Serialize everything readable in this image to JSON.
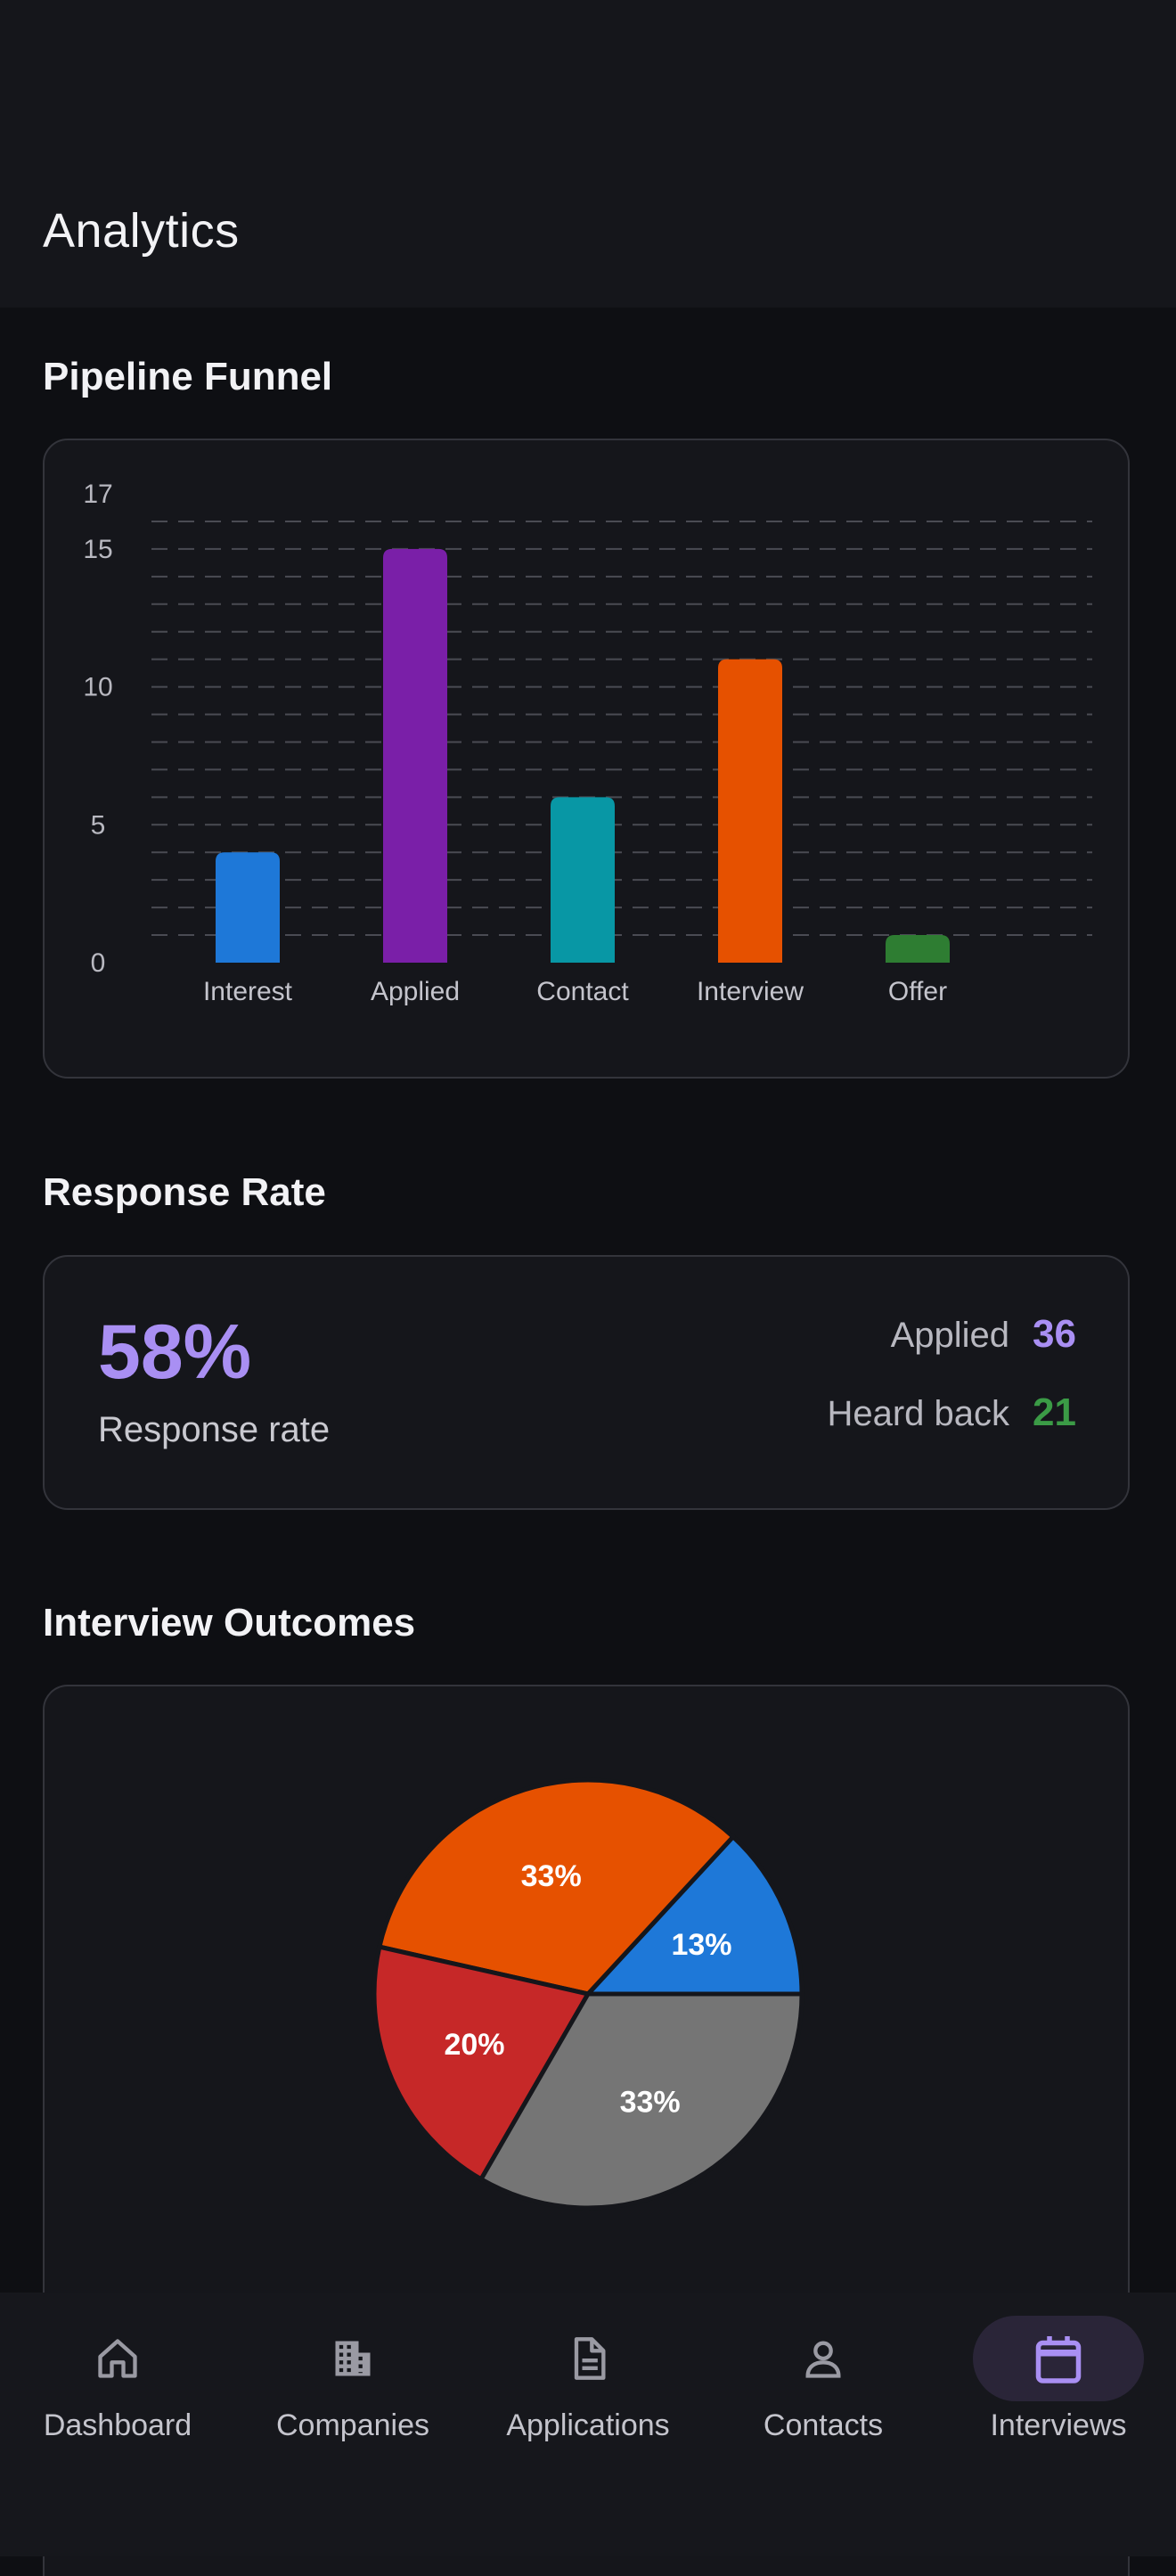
{
  "page": {
    "title": "Analytics"
  },
  "sections": {
    "funnel_title": "Pipeline Funnel",
    "response_title": "Response Rate",
    "outcomes_title": "Interview Outcomes"
  },
  "response": {
    "rate": "58%",
    "rate_label": "Response rate",
    "applied_label": "Applied",
    "applied_value": "36",
    "heard_label": "Heard back",
    "heard_value": "21",
    "applied_color": "#a98ff3",
    "heard_color": "#3b9b46"
  },
  "chart_data": [
    {
      "type": "bar",
      "title": "Pipeline Funnel",
      "categories": [
        "Interest",
        "Applied",
        "Contact",
        "Interview",
        "Offer"
      ],
      "values": [
        4,
        15,
        6,
        11,
        1
      ],
      "colors": [
        "#1e78d8",
        "#7a1fa8",
        "#0897a5",
        "#e65100",
        "#2e7d32"
      ],
      "yticks": [
        0,
        5,
        10,
        15,
        17
      ],
      "ylim": [
        0,
        17
      ],
      "grid": true
    },
    {
      "type": "pie",
      "title": "Interview Outcomes",
      "labels": [
        "13%",
        "33%",
        "20%",
        "33%"
      ],
      "values": [
        13,
        33,
        20,
        33
      ],
      "colors": [
        "#1e78d8",
        "#e65100",
        "#c62828",
        "#757575"
      ]
    }
  ],
  "nav": {
    "items": [
      {
        "label": "Dashboard",
        "icon": "home-icon"
      },
      {
        "label": "Companies",
        "icon": "building-icon"
      },
      {
        "label": "Applications",
        "icon": "document-icon"
      },
      {
        "label": "Contacts",
        "icon": "person-icon"
      },
      {
        "label": "Interviews",
        "icon": "calendar-icon"
      }
    ],
    "active": "Interviews",
    "active_color": "#a98ff3"
  }
}
